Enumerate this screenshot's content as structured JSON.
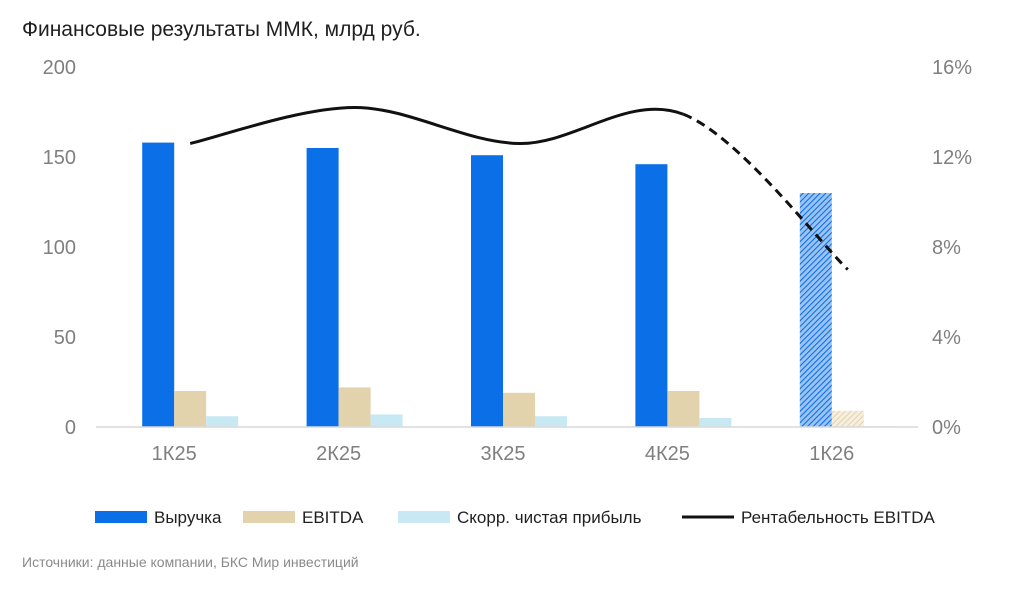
{
  "title": "Финансовые результаты ММК, млрд руб.",
  "source": "Источники: данные компании, БКС Мир инвестиций",
  "chart_data": {
    "type": "bar",
    "categories": [
      "1К25",
      "2К25",
      "3К25",
      "4К25",
      "1К26"
    ],
    "forecast_categories": [
      "1К26"
    ],
    "series": [
      {
        "name": "Выручка",
        "kind": "bar",
        "axis": "left",
        "color": "#0b6fe8",
        "values": [
          158,
          155,
          151,
          146,
          130
        ]
      },
      {
        "name": "EBITDA",
        "kind": "bar",
        "axis": "left",
        "color": "#e3d3ac",
        "values": [
          20,
          22,
          19,
          20,
          9
        ]
      },
      {
        "name": "Скорр. чистая прибыль",
        "kind": "bar",
        "axis": "left",
        "color": "#c8e8f4",
        "values": [
          6,
          7,
          6,
          5,
          0.5
        ]
      },
      {
        "name": "Рентабельность EBITDA",
        "kind": "line",
        "axis": "right",
        "color": "#111111",
        "values": [
          12.6,
          14.2,
          12.6,
          13.9,
          7.0
        ]
      }
    ],
    "y_left": {
      "min": 0,
      "max": 200,
      "ticks": [
        0,
        50,
        100,
        150,
        200
      ],
      "tick_labels": [
        "0",
        "50",
        "100",
        "150",
        "200"
      ]
    },
    "y_right": {
      "min": 0,
      "max": 16,
      "ticks": [
        0,
        4,
        8,
        12,
        16
      ],
      "tick_labels": [
        "0%",
        "4%",
        "8%",
        "12%",
        "16%"
      ]
    },
    "legend": {
      "position": "bottom"
    }
  }
}
